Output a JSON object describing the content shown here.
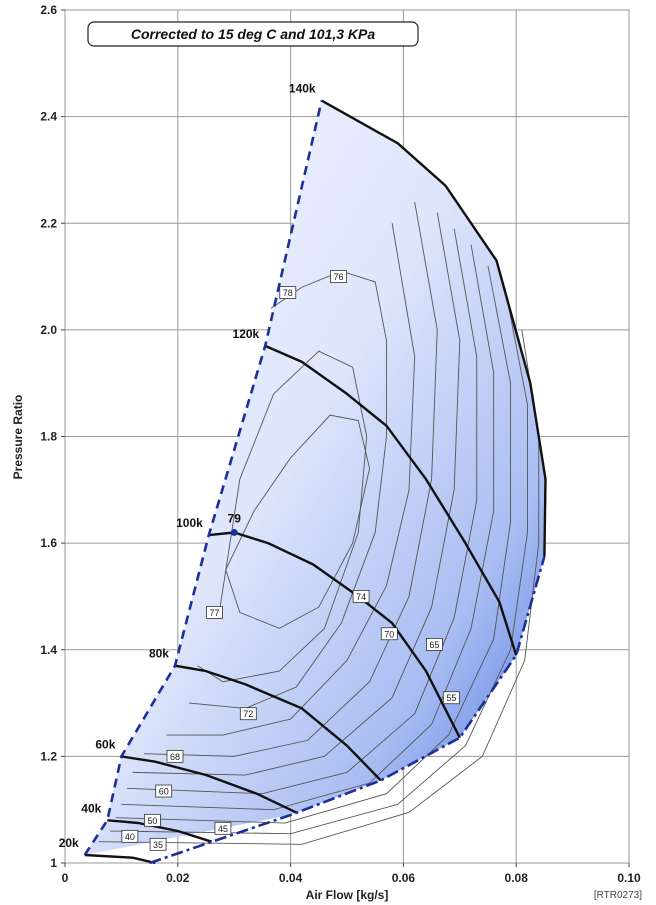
{
  "chart_data": {
    "type": "line",
    "title": "",
    "note": "Corrected to 15  deg C and 101,3 KPa",
    "xlabel": "Air Flow [kg/s]",
    "ylabel": "Pressure Ratio",
    "xlim": [
      0,
      0.1
    ],
    "ylim": [
      1.0,
      2.6
    ],
    "x_ticks": [
      "0",
      "0.02",
      "0.04",
      "0.06",
      "0.08",
      "0.10"
    ],
    "y_ticks": [
      "1",
      "1.2",
      "1.4",
      "1.6",
      "1.8",
      "2.0",
      "2.2",
      "2.4",
      "2.6"
    ],
    "grid": true,
    "reference": "[RTR0273]",
    "surge_line": [
      [
        0.0035,
        1.015
      ],
      [
        0.0075,
        1.08
      ],
      [
        0.01,
        1.2
      ],
      [
        0.0195,
        1.37
      ],
      [
        0.0255,
        1.615
      ],
      [
        0.0355,
        1.97
      ],
      [
        0.0455,
        2.43
      ]
    ],
    "choke_line": [
      [
        0.015,
        1.0
      ],
      [
        0.04,
        1.09
      ],
      [
        0.056,
        1.155
      ],
      [
        0.07,
        1.235
      ],
      [
        0.08,
        1.39
      ],
      [
        0.085,
        1.575
      ]
    ],
    "map_boundary_top": [
      [
        0.0455,
        2.43
      ],
      [
        0.059,
        2.35
      ],
      [
        0.0675,
        2.27
      ],
      [
        0.0765,
        2.13
      ],
      [
        0.0825,
        1.9
      ],
      [
        0.0852,
        1.72
      ],
      [
        0.085,
        1.575
      ]
    ],
    "speed_lines": [
      {
        "name": "20k",
        "label": "20k",
        "points": [
          [
            0.0035,
            1.015
          ],
          [
            0.012,
            1.01
          ],
          [
            0.016,
            1.0
          ]
        ]
      },
      {
        "name": "40k",
        "label": "40k",
        "points": [
          [
            0.0075,
            1.08
          ],
          [
            0.013,
            1.075
          ],
          [
            0.02,
            1.06
          ],
          [
            0.026,
            1.04
          ]
        ]
      },
      {
        "name": "60k",
        "label": "60k",
        "points": [
          [
            0.01,
            1.2
          ],
          [
            0.016,
            1.19
          ],
          [
            0.025,
            1.165
          ],
          [
            0.034,
            1.13
          ],
          [
            0.041,
            1.095
          ]
        ]
      },
      {
        "name": "80k",
        "label": "80k",
        "points": [
          [
            0.0195,
            1.37
          ],
          [
            0.025,
            1.36
          ],
          [
            0.032,
            1.335
          ],
          [
            0.042,
            1.29
          ],
          [
            0.05,
            1.22
          ],
          [
            0.056,
            1.155
          ]
        ]
      },
      {
        "name": "100k",
        "label": "100k",
        "points": [
          [
            0.0255,
            1.615
          ],
          [
            0.03,
            1.62
          ],
          [
            0.036,
            1.6
          ],
          [
            0.044,
            1.56
          ],
          [
            0.052,
            1.5
          ],
          [
            0.058,
            1.45
          ],
          [
            0.064,
            1.36
          ],
          [
            0.07,
            1.235
          ]
        ]
      },
      {
        "name": "120k",
        "label": "120k",
        "points": [
          [
            0.0355,
            1.97
          ],
          [
            0.042,
            1.94
          ],
          [
            0.05,
            1.88
          ],
          [
            0.057,
            1.82
          ],
          [
            0.064,
            1.72
          ],
          [
            0.071,
            1.6
          ],
          [
            0.077,
            1.49
          ],
          [
            0.08,
            1.39
          ]
        ]
      },
      {
        "name": "140k",
        "label": "140k",
        "points": [
          [
            0.0455,
            2.43
          ],
          [
            0.059,
            2.35
          ],
          [
            0.0675,
            2.27
          ],
          [
            0.0765,
            2.13
          ],
          [
            0.0825,
            1.9
          ],
          [
            0.0852,
            1.72
          ],
          [
            0.085,
            1.575
          ]
        ]
      }
    ],
    "efficiency_islands": [
      {
        "value": "79",
        "center": [
          0.03,
          1.62
        ]
      },
      {
        "value": "78",
        "at": [
          0.0395,
          2.07
        ]
      },
      {
        "value": "77",
        "at": [
          0.0265,
          1.47
        ]
      },
      {
        "value": "76",
        "at": [
          0.0485,
          2.1
        ]
      },
      {
        "value": "74",
        "at": [
          0.0525,
          1.5
        ]
      },
      {
        "value": "72",
        "at": [
          0.0325,
          1.28
        ]
      },
      {
        "value": "70",
        "at": [
          0.0575,
          1.43
        ]
      },
      {
        "value": "68",
        "at": [
          0.0195,
          1.2
        ]
      },
      {
        "value": "65",
        "at": [
          0.0655,
          1.41
        ]
      },
      {
        "value": "60",
        "at": [
          0.0175,
          1.135
        ]
      },
      {
        "value": "55",
        "at": [
          0.0685,
          1.31
        ]
      },
      {
        "value": "50",
        "at": [
          0.0155,
          1.08
        ]
      },
      {
        "value": "45",
        "at": [
          0.028,
          1.065
        ]
      },
      {
        "value": "40",
        "at": [
          0.0115,
          1.05
        ]
      },
      {
        "value": "35",
        "at": [
          0.0165,
          1.035
        ]
      }
    ]
  }
}
